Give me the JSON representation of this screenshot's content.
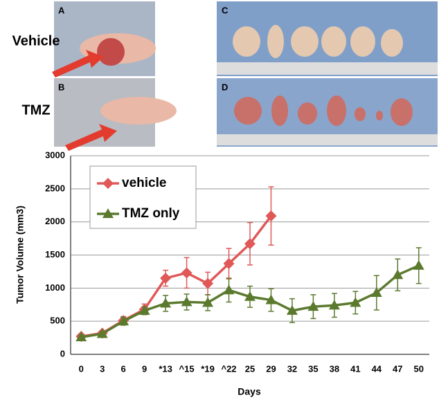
{
  "panels": {
    "row_labels": [
      "Vehicle",
      "TMZ"
    ],
    "letters": [
      "A",
      "B",
      "C",
      "D"
    ]
  },
  "chart_data": {
    "type": "line",
    "y_label": "Tumor Volume (mm3)",
    "x_label": "Days",
    "categories": [
      "0",
      "3",
      "6",
      "9",
      "*13",
      "^15",
      "*19",
      "^22",
      "25",
      "29",
      "32",
      "35",
      "38",
      "41",
      "44",
      "47",
      "50"
    ],
    "series": [
      {
        "name": "vehicle",
        "color": "#e05858",
        "marker": "diamond",
        "values": [
          270,
          320,
          510,
          680,
          1150,
          1230,
          1070,
          1370,
          1670,
          2090,
          null,
          null,
          null,
          null,
          null,
          null,
          null
        ],
        "errors": [
          30,
          30,
          60,
          80,
          120,
          230,
          170,
          230,
          320,
          440,
          null,
          null,
          null,
          null,
          null,
          null,
          null
        ]
      },
      {
        "name": "TMZ only",
        "color": "#5b7a2e",
        "marker": "triangle",
        "values": [
          260,
          310,
          500,
          660,
          770,
          790,
          780,
          970,
          870,
          820,
          660,
          720,
          740,
          780,
          930,
          1200,
          1340
        ],
        "errors": [
          30,
          30,
          60,
          60,
          120,
          120,
          120,
          180,
          160,
          170,
          180,
          180,
          180,
          170,
          260,
          240,
          270
        ]
      }
    ],
    "ylim": [
      0,
      3000
    ],
    "yticks": [
      0,
      500,
      1000,
      1500,
      2000,
      2500,
      3000
    ],
    "grid": true,
    "legend": "upper left"
  }
}
